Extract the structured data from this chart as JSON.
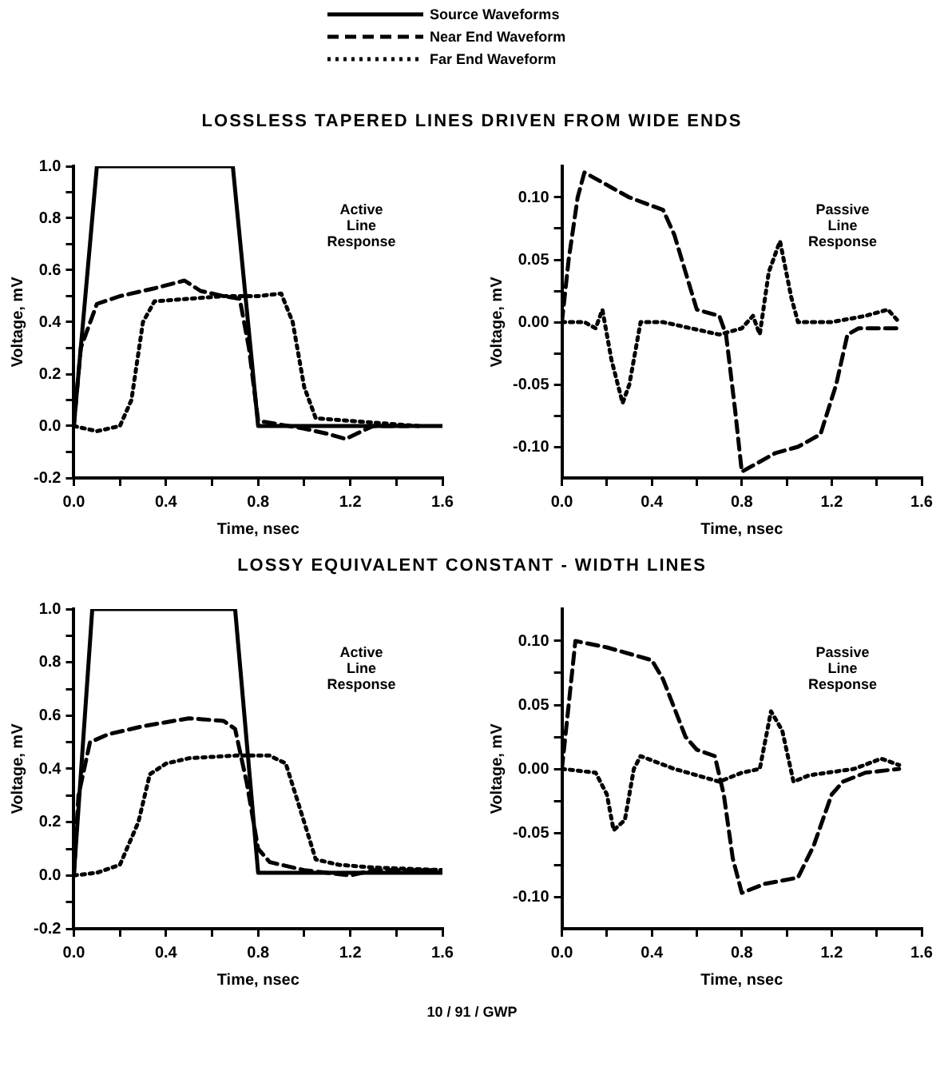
{
  "chart_data": [
    {
      "type": "line",
      "title": "LOSSLESS TAPERED LINES DRIVEN FROM WIDE ENDS",
      "xlabel": "Time, nsec",
      "ylabel": "Voltage, mV",
      "legend": "top",
      "grid": false,
      "marker": "none",
      "xlim": [
        0,
        1.6
      ],
      "ylim": [
        -0.2,
        1.0
      ],
      "xticks": [
        {
          "value": 0,
          "label": "0.0"
        },
        {
          "value": 0.2,
          "label": null
        },
        0.4,
        {
          "value": 0.6,
          "label": null
        },
        0.8,
        {
          "value": 1.0,
          "label": null
        },
        1.2,
        {
          "value": 1.4,
          "label": null
        },
        1.6
      ],
      "yticks": [
        -0.2,
        {
          "value": -0.1,
          "label": null
        },
        {
          "value": 0,
          "label": "0.0"
        },
        {
          "value": 0.1,
          "label": null
        },
        0.2,
        {
          "value": 0.3,
          "label": null
        },
        0.4,
        {
          "value": 0.5,
          "label": null
        },
        0.6,
        {
          "value": 0.7,
          "label": null
        },
        0.8,
        {
          "value": 0.9,
          "label": null
        },
        {
          "value": 1.0,
          "label": "1.0"
        }
      ],
      "annotations": [
        "Active Line Response"
      ],
      "series": [
        {
          "name": "Source Waveforms",
          "color": "#000000",
          "line_style": "solid",
          "x": [
            0,
            0.1,
            0.69,
            0.8,
            1.6
          ],
          "values": [
            0,
            1,
            1,
            0,
            0
          ]
        },
        {
          "name": "Near End Waveform",
          "color": "#000000",
          "line_style": "dashed",
          "x": [
            0,
            0.03,
            0.1,
            0.2,
            0.35,
            0.48,
            0.55,
            0.65,
            0.72,
            0.76,
            0.8,
            1.0,
            1.1,
            1.18,
            1.25,
            1.3,
            1.45
          ],
          "values": [
            0,
            0.3,
            0.47,
            0.5,
            0.53,
            0.56,
            0.52,
            0.5,
            0.49,
            0.3,
            0.02,
            -0.01,
            -0.03,
            -0.05,
            -0.02,
            0,
            0
          ]
        },
        {
          "name": "Far End Waveform",
          "color": "#000000",
          "line_style": "dotted",
          "x": [
            0,
            0.1,
            0.2,
            0.25,
            0.3,
            0.35,
            0.5,
            0.65,
            0.8,
            0.9,
            0.95,
            1.0,
            1.05,
            1.2,
            1.35,
            1.5
          ],
          "values": [
            0,
            -0.02,
            0,
            0.1,
            0.4,
            0.48,
            0.49,
            0.5,
            0.5,
            0.51,
            0.4,
            0.15,
            0.03,
            0.02,
            0.01,
            0
          ]
        }
      ]
    },
    {
      "type": "line",
      "xlabel": "Time, nsec",
      "ylabel": "Voltage, mV",
      "grid": false,
      "marker": "none",
      "xlim": [
        0,
        1.6
      ],
      "ylim": [
        -0.125,
        0.125
      ],
      "xticks": [
        {
          "value": 0,
          "label": "0.0"
        },
        {
          "value": 0.2,
          "label": null
        },
        0.4,
        {
          "value": 0.6,
          "label": null
        },
        0.8,
        {
          "value": 1.0,
          "label": null
        },
        1.2,
        {
          "value": 1.4,
          "label": null
        },
        1.6
      ],
      "yticks": [
        {
          "value": -0.1,
          "label": "-0.10"
        },
        {
          "value": -0.075,
          "label": null
        },
        {
          "value": -0.05,
          "label": "-0.05"
        },
        {
          "value": -0.025,
          "label": null
        },
        {
          "value": 0,
          "label": "0.00"
        },
        {
          "value": 0.025,
          "label": null
        },
        {
          "value": 0.05,
          "label": "0.05"
        },
        {
          "value": 0.075,
          "label": null
        },
        {
          "value": 0.1,
          "label": "0.10"
        }
      ],
      "annotations": [
        "Passive Line Response"
      ],
      "series": [
        {
          "color": "#000000",
          "line_style": "dashed",
          "x": [
            0,
            0.03,
            0.07,
            0.1,
            0.2,
            0.3,
            0.45,
            0.5,
            0.55,
            0.6,
            0.7,
            0.73,
            0.77,
            0.8,
            0.85,
            0.95,
            1.05,
            1.15,
            1.22,
            1.27,
            1.32,
            1.5
          ],
          "values": [
            0,
            0.05,
            0.1,
            0.12,
            0.11,
            0.1,
            0.09,
            0.07,
            0.04,
            0.01,
            0.005,
            -0.01,
            -0.07,
            -0.12,
            -0.115,
            -0.105,
            -0.1,
            -0.09,
            -0.05,
            -0.01,
            -0.005,
            -0.005
          ]
        },
        {
          "color": "#000000",
          "line_style": "dotted",
          "x": [
            0,
            0.1,
            0.15,
            0.18,
            0.22,
            0.27,
            0.3,
            0.35,
            0.45,
            0.7,
            0.8,
            0.85,
            0.88,
            0.92,
            0.97,
            1.02,
            1.05,
            1.2,
            1.35,
            1.45,
            1.5
          ],
          "values": [
            0,
            0,
            -0.005,
            0.01,
            -0.03,
            -0.065,
            -0.05,
            0,
            0,
            -0.01,
            -0.005,
            0.005,
            -0.01,
            0.04,
            0.065,
            0.02,
            0,
            0,
            0.005,
            0.01,
            0
          ]
        }
      ]
    },
    {
      "type": "line",
      "title": "LOSSY EQUIVALENT CONSTANT - WIDTH LINES",
      "xlabel": "Time, nsec",
      "ylabel": "Voltage, mV",
      "grid": false,
      "marker": "none",
      "xlim": [
        0,
        1.6
      ],
      "ylim": [
        -0.2,
        1.0
      ],
      "xticks": [
        {
          "value": 0,
          "label": "0.0"
        },
        {
          "value": 0.2,
          "label": null
        },
        0.4,
        {
          "value": 0.6,
          "label": null
        },
        0.8,
        {
          "value": 1.0,
          "label": null
        },
        1.2,
        {
          "value": 1.4,
          "label": null
        },
        1.6
      ],
      "yticks": [
        -0.2,
        {
          "value": -0.1,
          "label": null
        },
        {
          "value": 0,
          "label": "0.0"
        },
        {
          "value": 0.1,
          "label": null
        },
        0.2,
        {
          "value": 0.3,
          "label": null
        },
        0.4,
        {
          "value": 0.5,
          "label": null
        },
        0.6,
        {
          "value": 0.7,
          "label": null
        },
        0.8,
        {
          "value": 0.9,
          "label": null
        },
        {
          "value": 1.0,
          "label": "1.0"
        }
      ],
      "annotations": [
        "Active Line Response"
      ],
      "series": [
        {
          "color": "#000000",
          "line_style": "solid",
          "x": [
            0,
            0.08,
            0.7,
            0.8,
            1.6
          ],
          "values": [
            0,
            1,
            1,
            0.01,
            0.01
          ]
        },
        {
          "color": "#000000",
          "line_style": "dashed",
          "x": [
            0,
            0.02,
            0.07,
            0.15,
            0.3,
            0.5,
            0.65,
            0.7,
            0.75,
            0.8,
            0.85,
            1.0,
            1.2,
            1.3,
            1.6
          ],
          "values": [
            0,
            0.3,
            0.5,
            0.53,
            0.56,
            0.59,
            0.58,
            0.55,
            0.35,
            0.1,
            0.05,
            0.02,
            0,
            0.02,
            0.02
          ]
        },
        {
          "color": "#000000",
          "line_style": "dotted",
          "x": [
            0,
            0.1,
            0.2,
            0.28,
            0.33,
            0.4,
            0.5,
            0.7,
            0.85,
            0.92,
            1.0,
            1.05,
            1.15,
            1.3,
            1.6
          ],
          "values": [
            0,
            0.01,
            0.04,
            0.2,
            0.38,
            0.42,
            0.44,
            0.45,
            0.45,
            0.42,
            0.2,
            0.06,
            0.04,
            0.03,
            0.02
          ]
        }
      ]
    },
    {
      "type": "line",
      "xlabel": "Time, nsec",
      "ylabel": "Voltage, mV",
      "grid": false,
      "marker": "none",
      "xlim": [
        0,
        1.6
      ],
      "ylim": [
        -0.125,
        0.125
      ],
      "xticks": [
        {
          "value": 0,
          "label": "0.0"
        },
        {
          "value": 0.2,
          "label": null
        },
        0.4,
        {
          "value": 0.6,
          "label": null
        },
        0.8,
        {
          "value": 1.0,
          "label": null
        },
        1.2,
        {
          "value": 1.4,
          "label": null
        },
        1.6
      ],
      "yticks": [
        {
          "value": -0.1,
          "label": "-0.10"
        },
        {
          "value": -0.075,
          "label": null
        },
        {
          "value": -0.05,
          "label": "-0.05"
        },
        {
          "value": -0.025,
          "label": null
        },
        {
          "value": 0,
          "label": "0.00"
        },
        {
          "value": 0.025,
          "label": null
        },
        {
          "value": 0.05,
          "label": "0.05"
        },
        {
          "value": 0.075,
          "label": null
        },
        {
          "value": 0.1,
          "label": "0.10"
        }
      ],
      "annotations": [
        "Passive Line Response",
        "10 / 91 / GWP"
      ],
      "series": [
        {
          "color": "#000000",
          "line_style": "dashed",
          "x": [
            0,
            0.03,
            0.06,
            0.2,
            0.4,
            0.45,
            0.55,
            0.6,
            0.68,
            0.72,
            0.76,
            0.8,
            0.9,
            1.05,
            1.12,
            1.2,
            1.25,
            1.35,
            1.5
          ],
          "values": [
            0,
            0.05,
            0.1,
            0.095,
            0.085,
            0.07,
            0.025,
            0.015,
            0.01,
            -0.02,
            -0.07,
            -0.097,
            -0.09,
            -0.085,
            -0.06,
            -0.02,
            -0.01,
            -0.003,
            0
          ]
        },
        {
          "color": "#000000",
          "line_style": "dotted",
          "x": [
            0,
            0.15,
            0.2,
            0.23,
            0.28,
            0.32,
            0.35,
            0.5,
            0.7,
            0.8,
            0.88,
            0.93,
            0.98,
            1.03,
            1.1,
            1.3,
            1.42,
            1.5
          ],
          "values": [
            0,
            -0.003,
            -0.02,
            -0.048,
            -0.04,
            0,
            0.01,
            0,
            -0.01,
            -0.003,
            0,
            0.045,
            0.03,
            -0.01,
            -0.005,
            0,
            0.008,
            0.003
          ]
        }
      ]
    }
  ]
}
